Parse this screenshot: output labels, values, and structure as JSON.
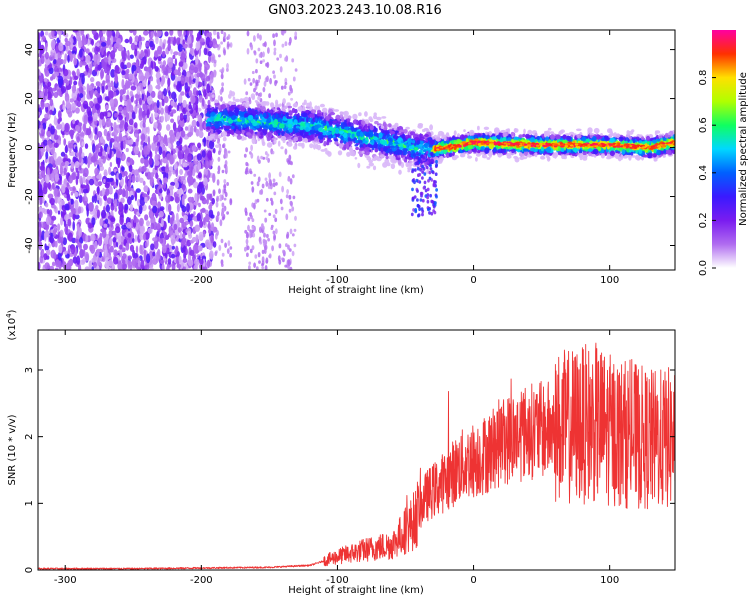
{
  "title": "GN03.2023.243.10.08.R16",
  "colors": {
    "snr_line": "#ee3333",
    "colormap": [
      "#ffffff",
      "#b06cf0",
      "#7a1cf0",
      "#3a1aff",
      "#0060ff",
      "#00d8ff",
      "#10ff60",
      "#b0ff00",
      "#ffe000",
      "#ff3000",
      "#ff00a0"
    ]
  },
  "chart_data": [
    {
      "type": "heatmap",
      "xlabel": "Height of straight line (km)",
      "ylabel": "Frequency (Hz)",
      "xlim": [
        -320,
        148
      ],
      "ylim": [
        -50,
        48
      ],
      "x_ticks": [
        -300,
        -200,
        -100,
        0,
        100
      ],
      "x_tick_labels": [
        "-300",
        "-200",
        "-100",
        "0",
        "100"
      ],
      "y_ticks": [
        -40,
        -20,
        0,
        20,
        40
      ],
      "y_tick_labels": [
        "-40",
        "-20",
        "0",
        "20",
        "40"
      ],
      "ridge": {
        "description_points_x": [
          -190,
          -150,
          -120,
          -100,
          -80,
          -60,
          -45,
          -35,
          -20,
          0,
          50,
          100,
          130,
          148
        ],
        "description_points_y": [
          12,
          10,
          9,
          7,
          4,
          2,
          0,
          -1,
          0,
          2,
          1,
          1,
          0,
          2
        ]
      },
      "colorbar": {
        "label": "Normalized spectral amplitude",
        "range": [
          0,
          1
        ],
        "ticks": [
          0.0,
          0.2,
          0.4,
          0.6,
          0.8
        ],
        "tick_labels": [
          "0.0",
          "0.2",
          "0.4",
          "0.6",
          "0.8"
        ]
      }
    },
    {
      "type": "line",
      "xlabel": "Height of straight line (km)",
      "ylabel": "SNR (10 * v/v)",
      "y_multiplier_label": "(x10",
      "y_multiplier_exp": "4",
      "y_multiplier_close": ")",
      "xlim": [
        -320,
        148
      ],
      "ylim": [
        0,
        3.6
      ],
      "x_ticks": [
        -300,
        -200,
        -100,
        0,
        100
      ],
      "x_tick_labels": [
        "-300",
        "-200",
        "-100",
        "0",
        "100"
      ],
      "y_ticks": [
        0,
        1,
        2,
        3
      ],
      "y_tick_labels": [
        "0",
        "1",
        "2",
        "3"
      ],
      "series": [
        {
          "x": [
            -320,
            -250,
            -200,
            -150,
            -120,
            -100,
            -80,
            -60,
            -45,
            -35,
            -20,
            -10,
            0,
            10,
            20,
            30,
            40,
            50,
            60,
            70,
            80,
            90,
            100,
            110,
            120,
            130,
            140,
            148
          ],
          "y": [
            0.02,
            0.02,
            0.03,
            0.04,
            0.07,
            0.2,
            0.3,
            0.38,
            0.7,
            1.1,
            1.35,
            1.55,
            1.65,
            1.75,
            1.92,
            2.0,
            2.08,
            2.1,
            2.12,
            2.15,
            2.18,
            2.2,
            2.1,
            2.05,
            2.0,
            1.95,
            1.95,
            2.0
          ]
        }
      ]
    }
  ]
}
